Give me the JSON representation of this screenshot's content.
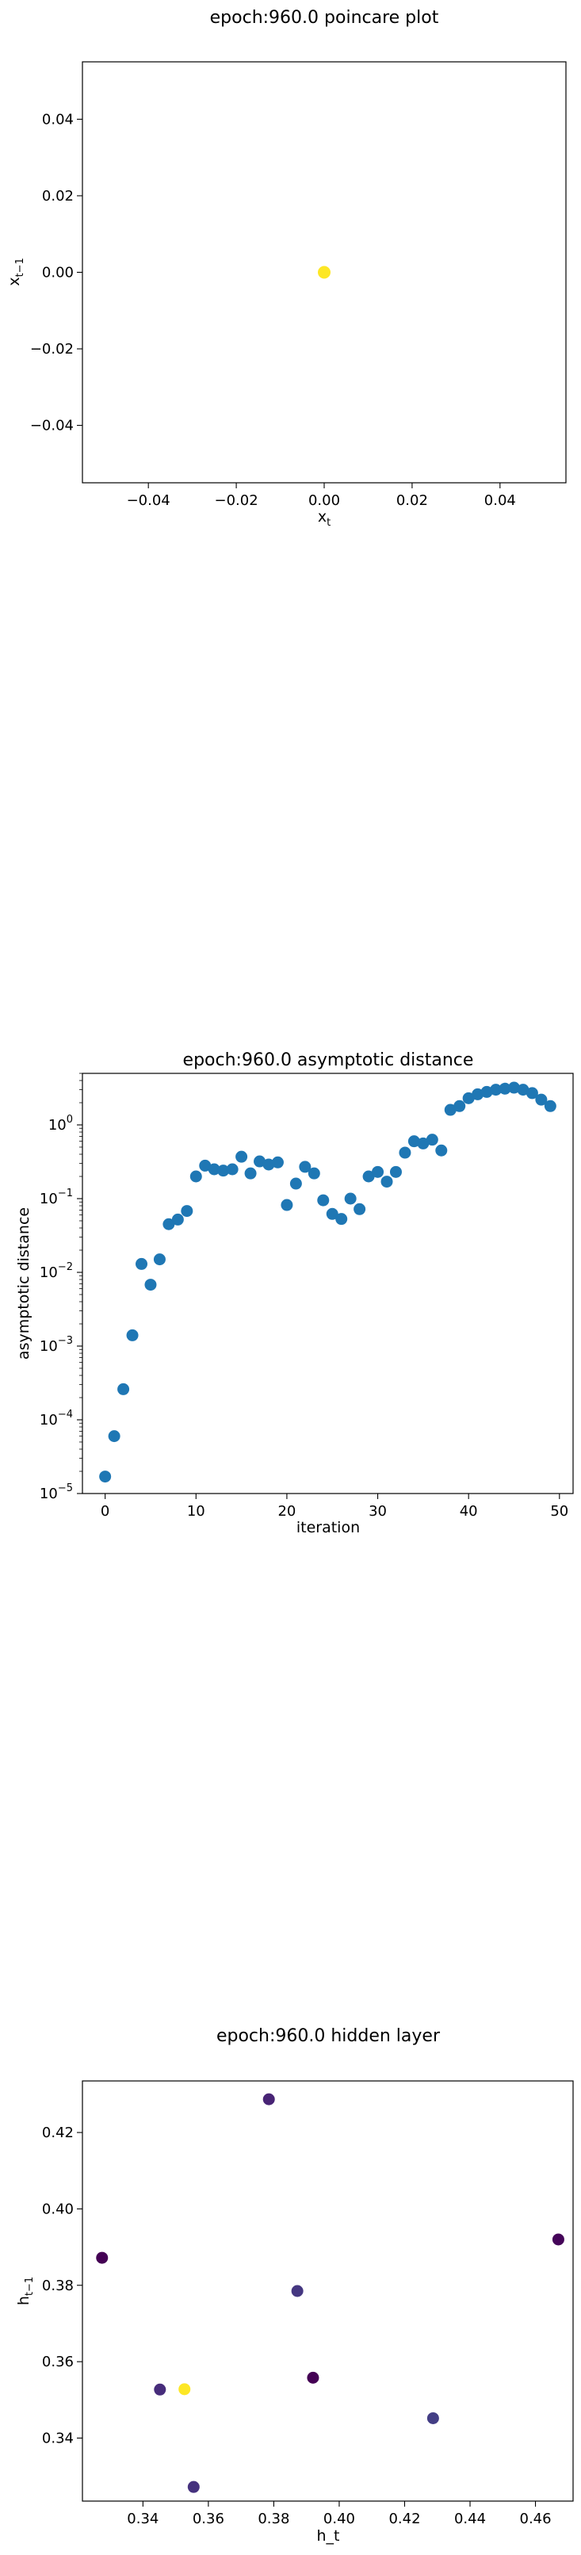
{
  "chart_data": [
    {
      "type": "scatter",
      "title": "epoch:960.0 poincare plot",
      "xlabel": "x",
      "xlabel_sub": "t",
      "ylabel": "x",
      "ylabel_sub": "t−1",
      "xlim": [
        -0.055,
        0.055
      ],
      "ylim": [
        -0.055,
        0.055
      ],
      "xticks": [
        -0.04,
        -0.02,
        0.0,
        0.02,
        0.04
      ],
      "yticks": [
        -0.04,
        -0.02,
        0.0,
        0.02,
        0.04
      ],
      "xtick_labels": [
        "−0.04",
        "−0.02",
        "0.00",
        "0.02",
        "0.04"
      ],
      "ytick_labels": [
        "−0.04",
        "−0.02",
        "0.00",
        "0.02",
        "0.04"
      ],
      "points": [
        {
          "x": 0.0,
          "y": 0.0,
          "color": "#fde725"
        }
      ]
    },
    {
      "type": "scatter",
      "title": "epoch:960.0 asymptotic distance",
      "xlabel": "iteration",
      "ylabel": "asymptotic distance",
      "yscale": "log",
      "xlim": [
        -2.5,
        51.5
      ],
      "ylim": [
        1e-05,
        5
      ],
      "xticks": [
        0,
        10,
        20,
        30,
        40,
        50
      ],
      "xtick_labels": [
        "0",
        "10",
        "20",
        "30",
        "40",
        "50"
      ],
      "yticks": [
        1e-05,
        0.0001,
        0.001,
        0.01,
        0.1,
        1
      ],
      "ytick_bases": [
        "10",
        "10",
        "10",
        "10",
        "10",
        "10"
      ],
      "ytick_exps": [
        "−5",
        "−4",
        "−3",
        "−2",
        "−1",
        "0"
      ],
      "color": "#1f77b4",
      "x": [
        0,
        1,
        2,
        3,
        4,
        5,
        6,
        7,
        8,
        9,
        10,
        11,
        12,
        13,
        14,
        15,
        16,
        17,
        18,
        19,
        20,
        21,
        22,
        23,
        24,
        25,
        26,
        27,
        28,
        29,
        30,
        31,
        32,
        33,
        34,
        35,
        36,
        37,
        38,
        39,
        40,
        41,
        42,
        43,
        44,
        45,
        46,
        47,
        48,
        49
      ],
      "y": [
        1.7e-05,
        6e-05,
        0.00026,
        0.0014,
        0.013,
        0.0068,
        0.015,
        0.045,
        0.052,
        0.068,
        0.2,
        0.28,
        0.25,
        0.24,
        0.25,
        0.37,
        0.22,
        0.32,
        0.29,
        0.31,
        0.082,
        0.16,
        0.27,
        0.22,
        0.095,
        0.062,
        0.053,
        0.1,
        0.072,
        0.2,
        0.23,
        0.17,
        0.23,
        0.42,
        0.6,
        0.56,
        0.63,
        0.45,
        1.6,
        1.8,
        2.3,
        2.6,
        2.8,
        3.0,
        3.1,
        3.2,
        3.0,
        2.7,
        2.2,
        1.8
      ]
    },
    {
      "type": "scatter",
      "title": "epoch:960.0 hidden layer",
      "xlabel": "h_t",
      "ylabel": "h",
      "ylabel_sub": "t−1",
      "xlim": [
        0.3215,
        0.4715
      ],
      "ylim": [
        0.3235,
        0.4335
      ],
      "xticks": [
        0.34,
        0.36,
        0.38,
        0.4,
        0.42,
        0.44,
        0.46
      ],
      "xtick_labels": [
        "0.34",
        "0.36",
        "0.38",
        "0.40",
        "0.42",
        "0.44",
        "0.46"
      ],
      "yticks": [
        0.34,
        0.36,
        0.38,
        0.4,
        0.42
      ],
      "ytick_labels": [
        "0.34",
        "0.36",
        "0.38",
        "0.40",
        "0.42"
      ],
      "points": [
        {
          "x": 0.3275,
          "y": 0.3872,
          "color": "#440154"
        },
        {
          "x": 0.3452,
          "y": 0.3527,
          "color": "#472d7b"
        },
        {
          "x": 0.3527,
          "y": 0.3528,
          "color": "#fde725"
        },
        {
          "x": 0.3555,
          "y": 0.3272,
          "color": "#46327e"
        },
        {
          "x": 0.3785,
          "y": 0.4287,
          "color": "#482475"
        },
        {
          "x": 0.3872,
          "y": 0.3785,
          "color": "#453781"
        },
        {
          "x": 0.392,
          "y": 0.3558,
          "color": "#440154"
        },
        {
          "x": 0.4287,
          "y": 0.3452,
          "color": "#433e85"
        },
        {
          "x": 0.467,
          "y": 0.392,
          "color": "#450559"
        }
      ]
    }
  ]
}
